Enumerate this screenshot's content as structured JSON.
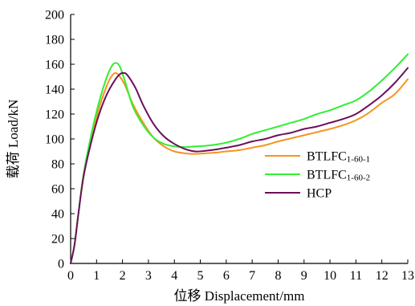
{
  "chart_data": {
    "type": "line",
    "xlabel": "位移 Displacement/mm",
    "ylabel": "载荷 Load/kN",
    "xlim": [
      0,
      13
    ],
    "ylim": [
      0,
      200
    ],
    "xticks": [
      "0",
      "1",
      "2",
      "3",
      "4",
      "5",
      "6",
      "7",
      "8",
      "9",
      "10",
      "11",
      "12",
      "13"
    ],
    "yticks": [
      "0",
      "20",
      "40",
      "60",
      "80",
      "100",
      "120",
      "140",
      "160",
      "180",
      "200"
    ],
    "legend_position": "right-middle",
    "grid": false,
    "series": [
      {
        "name": "BTLFC1-60-1",
        "name_main": "BTLFC",
        "name_sub": "1-60-1",
        "color": "#F7941D",
        "x": [
          0,
          0.15,
          0.3,
          0.5,
          0.8,
          1.1,
          1.4,
          1.6,
          1.75,
          1.9,
          2.1,
          2.4,
          2.8,
          3.2,
          3.6,
          4.0,
          4.4,
          4.8,
          5.2,
          5.6,
          6.0,
          6.5,
          7.0,
          7.5,
          8.0,
          8.5,
          9.0,
          9.5,
          10.0,
          10.5,
          11.0,
          11.5,
          12.0,
          12.5,
          13.0
        ],
        "y": [
          0,
          15,
          40,
          70,
          100,
          125,
          143,
          151,
          153,
          150,
          143,
          128,
          113,
          101,
          94,
          90,
          88.5,
          88,
          88.5,
          89,
          90,
          91,
          93,
          95,
          98,
          100.5,
          103,
          105.5,
          108,
          111,
          115,
          121,
          129,
          136,
          148
        ]
      },
      {
        "name": "BTLFC1-60-2",
        "name_main": "BTLFC",
        "name_sub": "1-60-2",
        "color": "#33EE33",
        "x": [
          0,
          0.15,
          0.3,
          0.5,
          0.8,
          1.1,
          1.4,
          1.6,
          1.75,
          1.9,
          2.1,
          2.4,
          2.8,
          3.2,
          3.6,
          4.0,
          4.4,
          4.8,
          5.2,
          5.6,
          6.0,
          6.5,
          7.0,
          7.5,
          8.0,
          8.5,
          9.0,
          9.5,
          10.0,
          10.5,
          11.0,
          11.5,
          12.0,
          12.5,
          13.0
        ],
        "y": [
          0,
          15,
          40,
          72,
          104,
          130,
          150,
          159,
          161,
          158,
          146,
          126,
          111,
          101,
          96,
          94,
          93.5,
          94,
          94.5,
          95.5,
          97,
          100,
          104,
          107,
          110,
          113,
          116,
          120,
          123,
          127,
          131,
          138,
          147,
          157,
          168
        ]
      },
      {
        "name": "HCP",
        "name_main": "HCP",
        "name_sub": "",
        "color": "#6B0F5A",
        "x": [
          0,
          0.15,
          0.3,
          0.5,
          0.8,
          1.1,
          1.4,
          1.7,
          1.9,
          2.05,
          2.2,
          2.5,
          2.8,
          3.2,
          3.6,
          4.0,
          4.4,
          4.8,
          5.2,
          5.6,
          6.0,
          6.5,
          7.0,
          7.5,
          8.0,
          8.5,
          9.0,
          9.5,
          10.0,
          10.5,
          11.0,
          11.5,
          12.0,
          12.5,
          13.0
        ],
        "y": [
          0,
          15,
          40,
          70,
          98,
          120,
          136,
          147,
          152,
          153,
          151,
          141,
          127,
          112,
          102,
          96,
          92,
          90,
          90.5,
          91.5,
          93,
          95,
          98,
          100,
          103,
          105,
          108,
          110,
          113,
          116,
          120,
          127,
          135,
          145,
          157
        ]
      }
    ]
  }
}
